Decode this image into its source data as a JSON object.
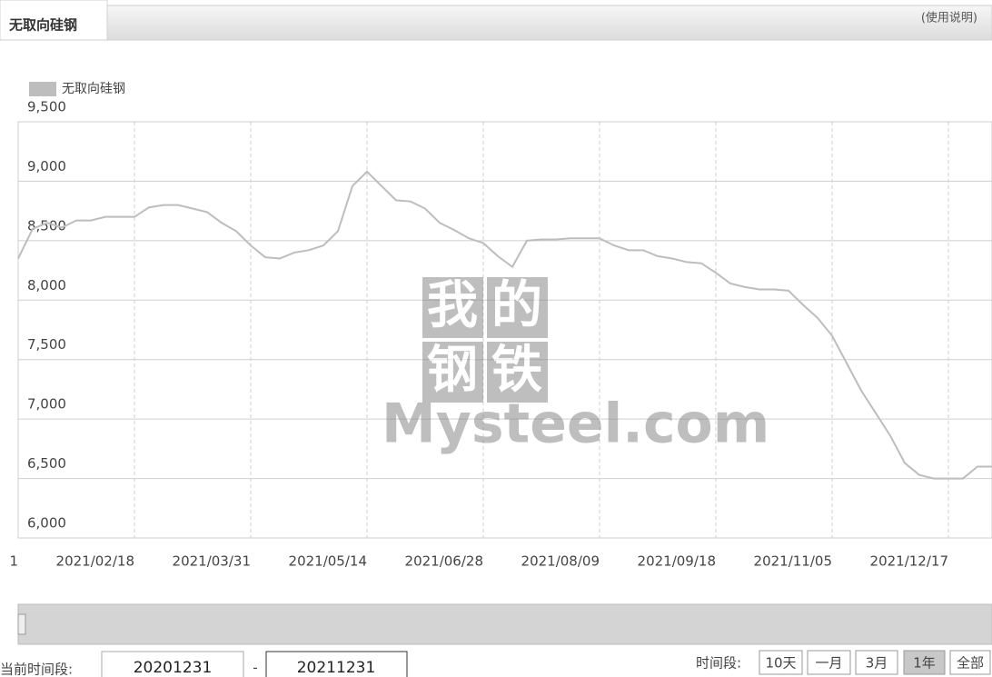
{
  "header": {
    "tab": "无取向硅钢",
    "help": "(使用说明)"
  },
  "watermark": {
    "chars": [
      "我",
      "的",
      "钢",
      "铁"
    ],
    "brand": "Mysteel.com"
  },
  "chart_data": {
    "type": "line",
    "categories": [
      "1",
      null,
      null,
      null,
      null,
      null,
      null,
      null,
      "2021/02/18",
      null,
      null,
      null,
      null,
      null,
      null,
      null,
      "2021/03/31",
      null,
      null,
      null,
      null,
      null,
      null,
      null,
      "2021/05/14",
      null,
      null,
      null,
      null,
      null,
      null,
      null,
      "2021/06/28",
      null,
      null,
      null,
      null,
      null,
      null,
      null,
      "2021/08/09",
      null,
      null,
      null,
      null,
      null,
      null,
      null,
      "2021/09/18",
      null,
      null,
      null,
      null,
      null,
      null,
      null,
      "2021/11/05",
      null,
      null,
      null,
      null,
      null,
      null,
      null,
      "2021/12/17",
      null,
      null,
      null
    ],
    "series": [
      {
        "name": "无取向硅钢",
        "color": "#bdbdbd",
        "values": [
          8350,
          8600,
          8650,
          8610,
          8670,
          8670,
          8700,
          8700,
          8700,
          8780,
          8800,
          8800,
          8770,
          8740,
          8650,
          8580,
          8460,
          8360,
          8350,
          8400,
          8420,
          8460,
          8580,
          8960,
          9080,
          8960,
          8840,
          8830,
          8770,
          8650,
          8590,
          8520,
          8480,
          8370,
          8280,
          8500,
          8510,
          8510,
          8520,
          8520,
          8520,
          8460,
          8420,
          8420,
          8370,
          8350,
          8320,
          8310,
          8230,
          8140,
          8110,
          8090,
          8090,
          8080,
          7960,
          7850,
          7700,
          7470,
          7240,
          7050,
          6860,
          6630,
          6530,
          6500,
          6500,
          6500,
          6600,
          6600
        ]
      }
    ],
    "ylim": [
      6000,
      9500
    ],
    "yticks": [
      {
        "value": 6000,
        "label": "6,000"
      },
      {
        "value": 6500,
        "label": "6,500"
      },
      {
        "value": 7000,
        "label": "7,000"
      },
      {
        "value": 7500,
        "label": "7,500"
      },
      {
        "value": 8000,
        "label": "8,000"
      },
      {
        "value": 8500,
        "label": "8,500"
      },
      {
        "value": 9000,
        "label": "9,000"
      },
      {
        "value": 9500,
        "label": "9,500"
      }
    ],
    "grid": true,
    "legend": "top-left"
  },
  "controls": {
    "period_label": "当前时间段:",
    "start": "20201231",
    "separator": "-",
    "end": "20211231",
    "range_label": "时间段:",
    "buttons": [
      "10天",
      "一月",
      "3月",
      "1年",
      "全部"
    ],
    "active_button": 3
  }
}
